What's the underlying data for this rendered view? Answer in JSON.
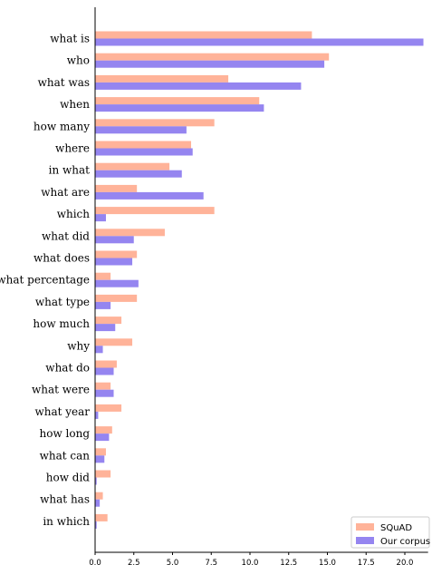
{
  "chart_data": {
    "type": "bar",
    "orientation": "horizontal",
    "categories": [
      "what is",
      "who",
      "what was",
      "when",
      "how many",
      "where",
      "in what",
      "what are",
      "which",
      "what did",
      "what does",
      "what percentage",
      "what type",
      "how much",
      "why",
      "what do",
      "what were",
      "what year",
      "how long",
      "what can",
      "how did",
      "what has",
      "in which"
    ],
    "series": [
      {
        "name": "SQuAD",
        "color": "#ffb399",
        "values": [
          14.0,
          15.1,
          8.6,
          10.6,
          7.7,
          6.2,
          4.8,
          2.7,
          7.7,
          4.5,
          2.7,
          1.0,
          2.7,
          1.7,
          2.4,
          1.4,
          1.0,
          1.7,
          1.1,
          0.7,
          1.0,
          0.5,
          0.8
        ]
      },
      {
        "name": "Our corpus",
        "color": "#9585f0",
        "values": [
          21.2,
          14.8,
          13.3,
          10.9,
          5.9,
          6.3,
          5.6,
          7.0,
          0.7,
          2.5,
          2.4,
          2.8,
          1.0,
          1.3,
          0.5,
          1.2,
          1.2,
          0.2,
          0.9,
          0.6,
          0.1,
          0.3,
          0.1
        ]
      }
    ],
    "xlim": [
      0,
      21.5
    ],
    "xticks": [
      "0.0",
      "2.5",
      "5.0",
      "7.5",
      "10.0",
      "12.5",
      "15.0",
      "17.5",
      "20.0"
    ],
    "legend_position": "bottom-right",
    "grid": false
  }
}
